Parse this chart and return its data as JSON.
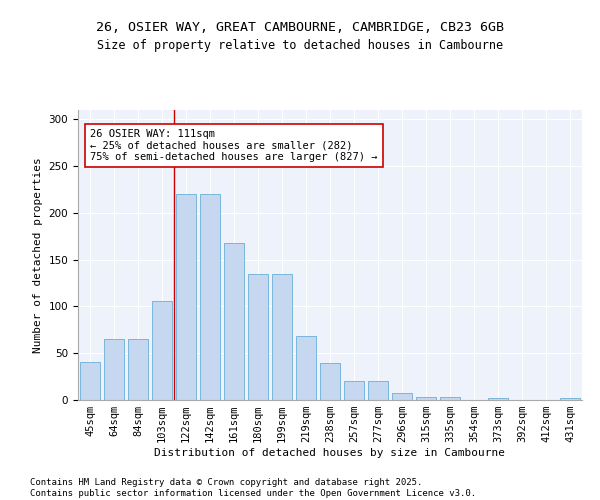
{
  "title_line1": "26, OSIER WAY, GREAT CAMBOURNE, CAMBRIDGE, CB23 6GB",
  "title_line2": "Size of property relative to detached houses in Cambourne",
  "xlabel": "Distribution of detached houses by size in Cambourne",
  "ylabel": "Number of detached properties",
  "categories": [
    "45sqm",
    "64sqm",
    "84sqm",
    "103sqm",
    "122sqm",
    "142sqm",
    "161sqm",
    "180sqm",
    "199sqm",
    "219sqm",
    "238sqm",
    "257sqm",
    "277sqm",
    "296sqm",
    "315sqm",
    "335sqm",
    "354sqm",
    "373sqm",
    "392sqm",
    "412sqm",
    "431sqm"
  ],
  "values": [
    41,
    65,
    65,
    106,
    220,
    220,
    168,
    135,
    135,
    68,
    40,
    20,
    20,
    8,
    3,
    3,
    0,
    2,
    0,
    0,
    2
  ],
  "bar_color": "#c5d8f0",
  "bar_edge_color": "#6baed6",
  "annotation_text": "26 OSIER WAY: 111sqm\n← 25% of detached houses are smaller (282)\n75% of semi-detached houses are larger (827) →",
  "vline_x": 3.5,
  "vline_color": "#cc0000",
  "annotation_box_color": "#ffffff",
  "annotation_box_edge_color": "#cc0000",
  "ylim": [
    0,
    310
  ],
  "yticks": [
    0,
    50,
    100,
    150,
    200,
    250,
    300
  ],
  "background_color": "#eef2fa",
  "footer_text": "Contains HM Land Registry data © Crown copyright and database right 2025.\nContains public sector information licensed under the Open Government Licence v3.0.",
  "title_fontsize": 9.5,
  "subtitle_fontsize": 8.5,
  "axis_label_fontsize": 8,
  "tick_fontsize": 7.5,
  "annotation_fontsize": 7.5,
  "footer_fontsize": 6.5
}
